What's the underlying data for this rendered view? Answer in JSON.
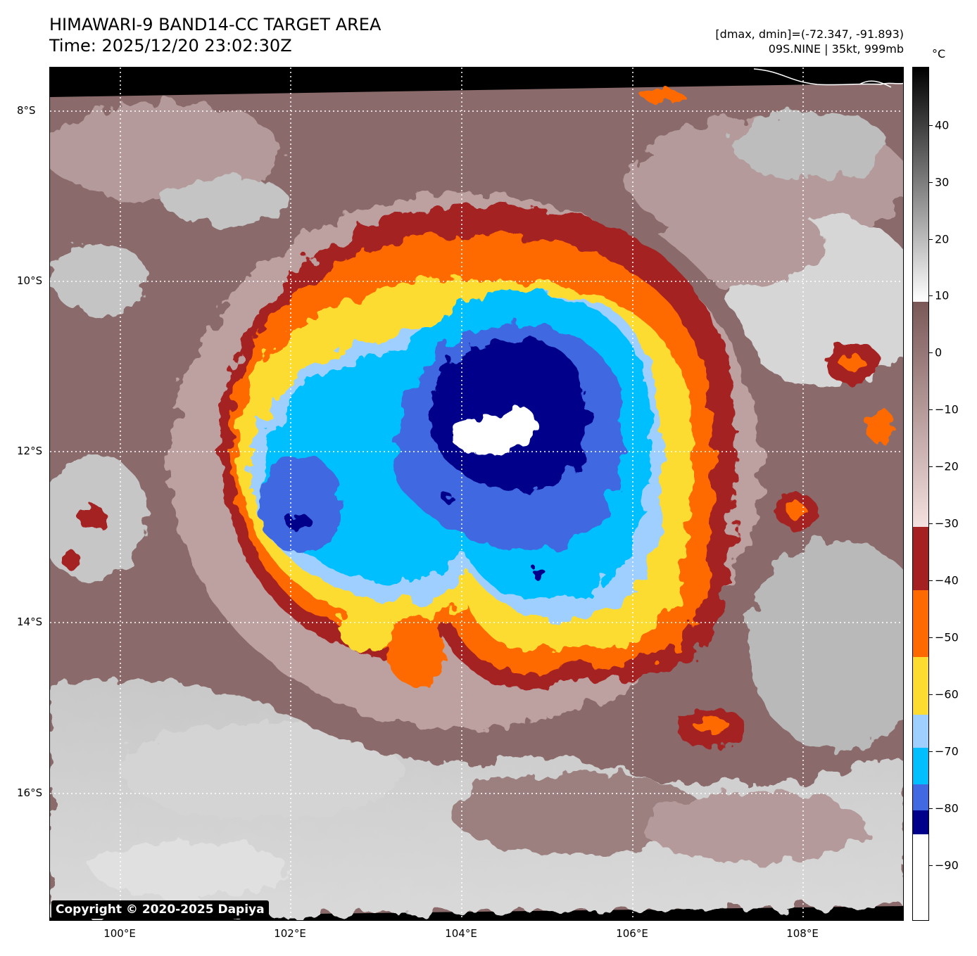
{
  "header": {
    "title_line1": "HIMAWARI-9 BAND14-CC TARGET AREA",
    "title_line2": "Time: 2025/12/20 23:02:30Z",
    "stats_line1": "[dmax, dmin]=(-72.347, -91.893)",
    "stats_line2": "09S.NINE | 35kt, 999mb"
  },
  "map": {
    "copyright": "Copyright © 2020-2025 Dapiya",
    "lat_labels": [
      "8°S",
      "10°S",
      "12°S",
      "14°S",
      "16°S"
    ],
    "lon_labels": [
      "100°E",
      "102°E",
      "104°E",
      "106°E",
      "108°E"
    ]
  },
  "colorbar": {
    "unit": "°C",
    "tick_labels": [
      "40",
      "30",
      "20",
      "10",
      "0",
      "−10",
      "−20",
      "−30",
      "−40",
      "−50",
      "−60",
      "−70",
      "−80",
      "−90"
    ],
    "colors": {
      "eye_white": "#ffffff",
      "navy": "#00008b",
      "royal_blue": "#4169e1",
      "deep_sky": "#00bfff",
      "light_blue": "#9fcfff",
      "gold": "#fddc30",
      "orange": "#ff6a00",
      "brick": "#a52020",
      "mauve": "#8a6a6a",
      "pinkish": "#e8cccc"
    }
  }
}
